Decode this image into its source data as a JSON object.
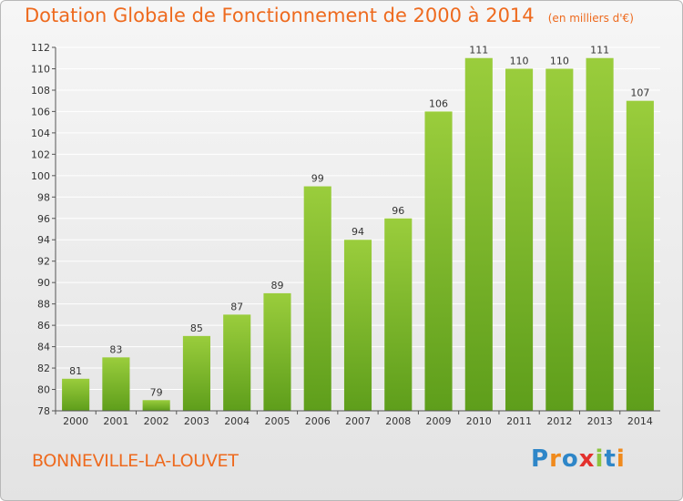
{
  "commune": "BONNEVILLE-LA-LOUVET",
  "logo": {
    "text": "Proxiti",
    "letters": [
      {
        "char": "P",
        "color": "#2e86c8"
      },
      {
        "char": "r",
        "color": "#f08a1c"
      },
      {
        "char": "o",
        "color": "#2e86c8"
      },
      {
        "char": "x",
        "color": "#e3312d"
      },
      {
        "char": "i",
        "color": "#8cc43f"
      },
      {
        "char": "t",
        "color": "#2e86c8"
      },
      {
        "char": "i",
        "color": "#f08a1c"
      }
    ]
  },
  "colors": {
    "title": "#ee6a1e",
    "bar_top": "#9acd3c",
    "bar_bottom": "#5e9e1b",
    "grid": "#ffffff",
    "axis_text": "#333333"
  },
  "chart_data": {
    "type": "bar",
    "title": "Dotation Globale de Fonctionnement de 2000 à 2014",
    "subtitle": "(en milliers d'€)",
    "categories": [
      "2000",
      "2001",
      "2002",
      "2003",
      "2004",
      "2005",
      "2006",
      "2007",
      "2008",
      "2009",
      "2010",
      "2011",
      "2012",
      "2013",
      "2014"
    ],
    "values": [
      81,
      83,
      79,
      85,
      87,
      89,
      99,
      94,
      96,
      106,
      111,
      110,
      110,
      111,
      107
    ],
    "ylim": [
      78,
      112
    ],
    "yticks": [
      78,
      80,
      82,
      84,
      86,
      88,
      90,
      92,
      94,
      96,
      98,
      100,
      102,
      104,
      106,
      108,
      110,
      112
    ],
    "xlabel": "",
    "ylabel": "",
    "grid": true,
    "legend": "none"
  }
}
